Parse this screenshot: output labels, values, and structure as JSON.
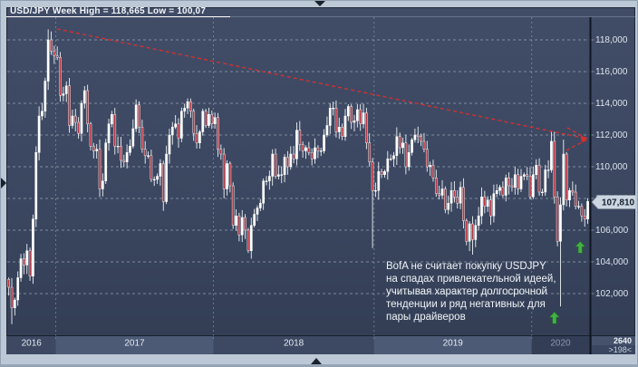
{
  "title": "USD/JPY Week High = 118,665 Low = 100,07",
  "annotation": {
    "text": "BofA не считает покупку USDJPY\nна спадах привлекательной идеей,\nучитывая характер долгосрочной\nтенденции и ряд негативных для\nпары драйверов"
  },
  "price_badge": {
    "label": "107,810"
  },
  "corner": {
    "value_top": "2640",
    "value_bottom": ">198<"
  },
  "colors": {
    "up_candle": "#ffffff",
    "down_candle": "#b53440",
    "wick": "#eef1f5",
    "grid": "#9aa6b7",
    "axis_line": "#0f1622",
    "trendline": "#d23030",
    "signal_arrow": "#43b047",
    "badge_bg": "#ccd6e2",
    "badge_text": "#15202e",
    "y_label": "#dde4ee",
    "band_light": "#4d5a76",
    "band_base": "#3d4963",
    "band_2020": "#333e56",
    "year_label": "#e4eaf2",
    "year_label_dim": "#8d98ab"
  },
  "chart_data": {
    "type": "candlestick",
    "instrument": "USD/JPY",
    "interval": "Week",
    "period_high": 118.665,
    "period_low": 100.07,
    "last_close": 107.81,
    "y_ticks": [
      {
        "label": "118,000",
        "value": 118.0
      },
      {
        "label": "116,000",
        "value": 116.0
      },
      {
        "label": "114,000",
        "value": 114.0
      },
      {
        "label": "112,000",
        "value": 112.0
      },
      {
        "label": "110,000",
        "value": 110.0
      },
      {
        "label": "108,000",
        "value": 108.0
      },
      {
        "label": "106,000",
        "value": 106.0
      },
      {
        "label": "104,000",
        "value": 104.0
      },
      {
        "label": "102,000",
        "value": 102.0
      }
    ],
    "x_years": [
      {
        "label": "2016",
        "weeks": 16,
        "band": "base"
      },
      {
        "label": "2017",
        "weeks": 52,
        "band": "light"
      },
      {
        "label": "2018",
        "weeks": 53,
        "band": "base"
      },
      {
        "label": "2019",
        "weeks": 52,
        "band": "light"
      },
      {
        "label": "2020",
        "weeks": 19,
        "band": "dark"
      }
    ],
    "open_first": 102.9,
    "weekly_closes": [
      102.4,
      101.1,
      101.6,
      103.0,
      104.2,
      103.8,
      104.7,
      103.1,
      106.7,
      110.9,
      113.2,
      113.5,
      115.4,
      118.0,
      117.3,
      117.0,
      116.9,
      114.5,
      114.6,
      115.1,
      112.6,
      113.2,
      112.8,
      112.1,
      114.0,
      114.8,
      112.7,
      111.3,
      111.0,
      111.1,
      108.6,
      109.1,
      111.5,
      112.7,
      113.3,
      111.3,
      111.3,
      110.4,
      110.3,
      110.9,
      111.3,
      112.4,
      113.9,
      112.5,
      111.1,
      110.7,
      110.7,
      109.2,
      109.2,
      109.4,
      110.2,
      107.8,
      110.8,
      112.0,
      112.5,
      112.7,
      111.8,
      113.5,
      113.7,
      114.1,
      113.5,
      112.1,
      111.5,
      112.2,
      113.5,
      112.6,
      113.3,
      112.7,
      113.1,
      111.1,
      110.8,
      108.6,
      110.2,
      108.8,
      106.3,
      106.9,
      105.7,
      106.8,
      106.0,
      104.7,
      106.3,
      107.0,
      107.4,
      107.7,
      109.1,
      109.1,
      109.4,
      110.8,
      109.4,
      109.5,
      109.5,
      110.6,
      110.0,
      110.8,
      110.5,
      112.3,
      111.4,
      111.0,
      111.2,
      110.9,
      110.5,
      111.2,
      111.0,
      111.0,
      112.0,
      112.6,
      113.7,
      113.7,
      112.2,
      112.5,
      111.9,
      113.2,
      113.8,
      112.8,
      112.9,
      113.6,
      112.7,
      113.4,
      111.5,
      110.3,
      108.5,
      108.5,
      109.7,
      109.5,
      109.7,
      110.5,
      110.5,
      110.7,
      111.9,
      111.2,
      111.5,
      110.0,
      110.9,
      111.7,
      112.0,
      111.9,
      111.6,
      111.1,
      110.0,
      110.1,
      109.3,
      108.3,
      108.2,
      108.6,
      107.3,
      107.7,
      108.5,
      108.1,
      107.7,
      108.7,
      106.6,
      105.3,
      106.4,
      105.4,
      106.3,
      106.9,
      108.1,
      107.5,
      107.9,
      106.9,
      108.3,
      108.5,
      108.7,
      108.2,
      109.3,
      108.8,
      108.7,
      109.5,
      108.6,
      109.4,
      109.5,
      109.4,
      108.1,
      109.5,
      110.1,
      108.4,
      108.4,
      109.8,
      109.8,
      111.6,
      108.1,
      105.3,
      107.6,
      110.8,
      107.9,
      108.5,
      108.4,
      107.5,
      107.5,
      106.9,
      106.7,
      107.81
    ],
    "overrides": {
      "1": {
        "low": 100.07
      },
      "13": {
        "high": 118.665
      },
      "79": {
        "low": 104.56
      },
      "120": {
        "low": 104.87
      },
      "151": {
        "low": 105.05
      },
      "153": {
        "low": 104.46
      },
      "179": {
        "high": 112.23
      },
      "182": {
        "low": 101.19
      },
      "183": {
        "high": 111.71
      }
    },
    "trendline": {
      "start": {
        "week": 15.9,
        "price": 118.69
      },
      "end": {
        "week": 190.8,
        "price": 111.77
      },
      "style": "dashed-red-arrow"
    },
    "signal_arrows": [
      {
        "week": 180.0,
        "price": 100.85
      },
      {
        "week": 188.5,
        "price": 105.3
      }
    ]
  }
}
